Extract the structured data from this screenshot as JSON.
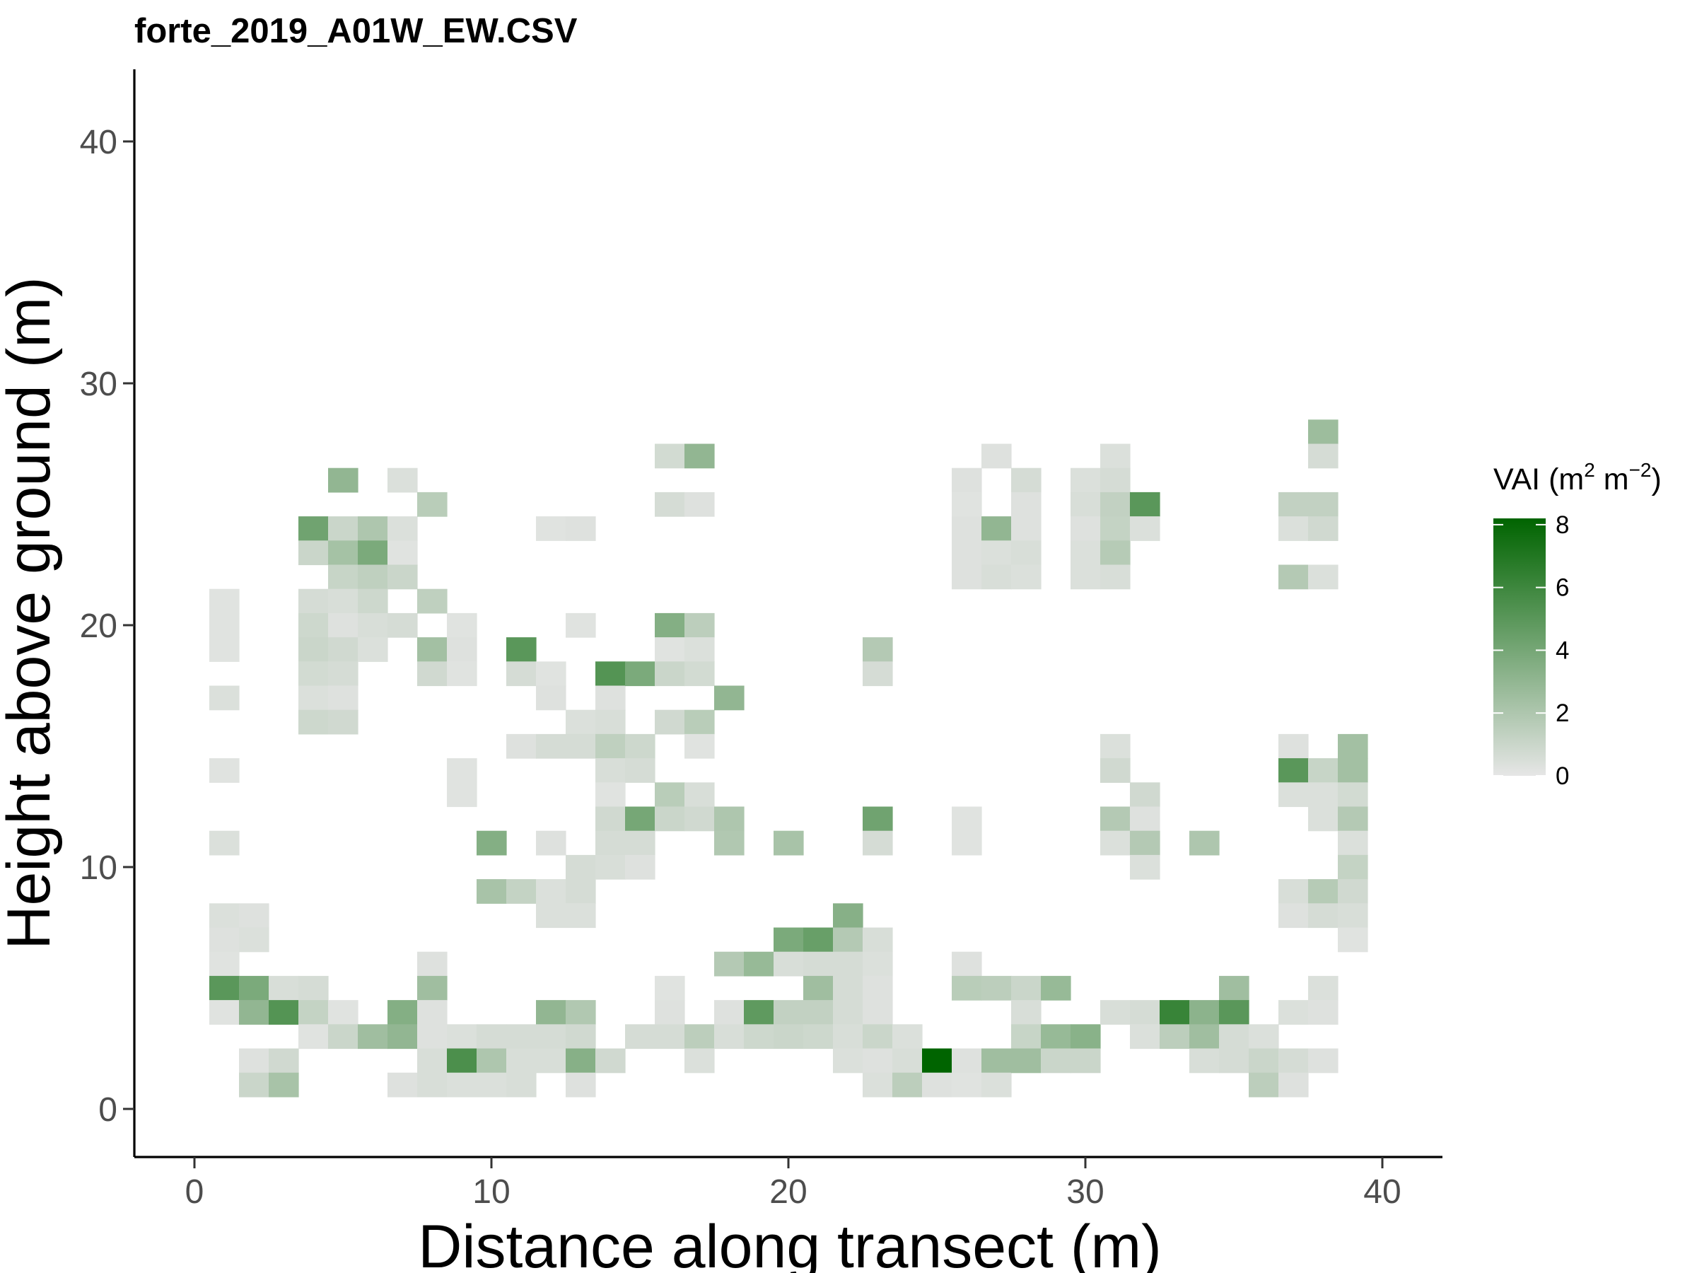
{
  "chart_data": {
    "type": "heatmap",
    "title": "forte_2019_A01W_EW.CSV",
    "xlabel": "Distance along transect (m)",
    "ylabel": "Height above ground (m)",
    "xlim": [
      -2,
      42
    ],
    "ylim": [
      -2,
      43
    ],
    "x_ticks": [
      0,
      10,
      20,
      30,
      40
    ],
    "y_ticks": [
      0,
      10,
      20,
      30,
      40
    ],
    "grid": false,
    "legend": {
      "title_text": "VAI (m",
      "title_sup1": "2",
      "title_mid": " m",
      "title_sup2": "−2",
      "title_end": ")",
      "min": 0,
      "max": 8.2,
      "ticks": [
        0,
        2,
        4,
        6,
        8
      ],
      "color_low": "#e6e6e6",
      "color_high": "#006400",
      "placement": "right"
    },
    "cells": [
      [
        1,
        20,
        0.2
      ],
      [
        1,
        21,
        0.2
      ],
      [
        1,
        19,
        0.2
      ],
      [
        1,
        17,
        0.4
      ],
      [
        1,
        14,
        0.2
      ],
      [
        1,
        11,
        0.4
      ],
      [
        1,
        8,
        0.4
      ],
      [
        1,
        7,
        0.3
      ],
      [
        1,
        6,
        0.2
      ],
      [
        1,
        5,
        5
      ],
      [
        1,
        4,
        0.2
      ],
      [
        2,
        8,
        0.3
      ],
      [
        2,
        7,
        0.4
      ],
      [
        2,
        5,
        3.8
      ],
      [
        2,
        4,
        3
      ],
      [
        2,
        2,
        0.3
      ],
      [
        2,
        1,
        1
      ],
      [
        3,
        5,
        0.5
      ],
      [
        3,
        4,
        5.2
      ],
      [
        3,
        2,
        0.8
      ],
      [
        3,
        1,
        2.2
      ],
      [
        4,
        24,
        4.2
      ],
      [
        4,
        23,
        1
      ],
      [
        4,
        21,
        0.6
      ],
      [
        4,
        20,
        0.9
      ],
      [
        4,
        19,
        1
      ],
      [
        4,
        18,
        0.7
      ],
      [
        4,
        17,
        0.4
      ],
      [
        4,
        16,
        0.9
      ],
      [
        4,
        5,
        0.6
      ],
      [
        4,
        4,
        1.2
      ],
      [
        4,
        3,
        0.2
      ],
      [
        5,
        26,
        3
      ],
      [
        5,
        24,
        1
      ],
      [
        5,
        23,
        2.3
      ],
      [
        5,
        22,
        1.1
      ],
      [
        5,
        21,
        0.5
      ],
      [
        5,
        20,
        0.3
      ],
      [
        5,
        19,
        0.8
      ],
      [
        5,
        18,
        0.6
      ],
      [
        5,
        17,
        0.3
      ],
      [
        5,
        16,
        0.8
      ],
      [
        5,
        4,
        0.2
      ],
      [
        5,
        3,
        1
      ],
      [
        6,
        24,
        2
      ],
      [
        6,
        23,
        3.8
      ],
      [
        6,
        22,
        1.4
      ],
      [
        6,
        21,
        0.9
      ],
      [
        6,
        20,
        0.5
      ],
      [
        6,
        19,
        0.4
      ],
      [
        6,
        3,
        2.5
      ],
      [
        7,
        26,
        0.4
      ],
      [
        7,
        24,
        0.4
      ],
      [
        7,
        23,
        0.2
      ],
      [
        7,
        22,
        1
      ],
      [
        7,
        20,
        0.6
      ],
      [
        7,
        4,
        3.5
      ],
      [
        7,
        3,
        3
      ],
      [
        7,
        1,
        0.3
      ],
      [
        8,
        25,
        1.6
      ],
      [
        8,
        21,
        1.4
      ],
      [
        8,
        19,
        2.4
      ],
      [
        8,
        18,
        0.8
      ],
      [
        8,
        6,
        0.3
      ],
      [
        8,
        5,
        2.5
      ],
      [
        8,
        4,
        0.3
      ],
      [
        8,
        3,
        0.3
      ],
      [
        8,
        2,
        0.5
      ],
      [
        8,
        1,
        0.5
      ],
      [
        9,
        20,
        0.2
      ],
      [
        9,
        19,
        0.3
      ],
      [
        9,
        18,
        0.2
      ],
      [
        9,
        14,
        0.2
      ],
      [
        9,
        13,
        0.2
      ],
      [
        9,
        3,
        0.4
      ],
      [
        9,
        2,
        5.5
      ],
      [
        9,
        1,
        0.4
      ],
      [
        10,
        11,
        3.5
      ],
      [
        10,
        9,
        2.2
      ],
      [
        10,
        3,
        0.6
      ],
      [
        10,
        2,
        2
      ],
      [
        10,
        1,
        0.4
      ],
      [
        11,
        19,
        5
      ],
      [
        11,
        18,
        0.6
      ],
      [
        11,
        15,
        0.3
      ],
      [
        11,
        9,
        1.2
      ],
      [
        11,
        3,
        0.6
      ],
      [
        11,
        2,
        0.5
      ],
      [
        11,
        1,
        0.5
      ],
      [
        12,
        24,
        0.2
      ],
      [
        12,
        18,
        0.2
      ],
      [
        12,
        17,
        0.3
      ],
      [
        12,
        15,
        0.6
      ],
      [
        12,
        11,
        0.3
      ],
      [
        12,
        9,
        0.4
      ],
      [
        12,
        8,
        0.4
      ],
      [
        12,
        4,
        3
      ],
      [
        12,
        3,
        0.6
      ],
      [
        12,
        2,
        0.5
      ],
      [
        13,
        24,
        0.3
      ],
      [
        13,
        20,
        0.2
      ],
      [
        13,
        16,
        0.4
      ],
      [
        13,
        15,
        0.6
      ],
      [
        13,
        10,
        0.6
      ],
      [
        13,
        9,
        0.6
      ],
      [
        13,
        8,
        0.4
      ],
      [
        13,
        4,
        1.9
      ],
      [
        13,
        3,
        0.8
      ],
      [
        13,
        2,
        3.4
      ],
      [
        13,
        1,
        0.3
      ],
      [
        14,
        18,
        5.2
      ],
      [
        14,
        17,
        0.3
      ],
      [
        14,
        16,
        0.5
      ],
      [
        14,
        15,
        1.4
      ],
      [
        14,
        14,
        0.5
      ],
      [
        14,
        13,
        0.2
      ],
      [
        14,
        12,
        0.8
      ],
      [
        14,
        11,
        0.6
      ],
      [
        14,
        10,
        0.5
      ],
      [
        14,
        2,
        0.8
      ],
      [
        15,
        18,
        3.8
      ],
      [
        15,
        15,
        0.9
      ],
      [
        15,
        14,
        0.6
      ],
      [
        15,
        12,
        4
      ],
      [
        15,
        11,
        0.6
      ],
      [
        15,
        10,
        0.3
      ],
      [
        15,
        3,
        0.6
      ],
      [
        16,
        27,
        0.7
      ],
      [
        16,
        25,
        0.6
      ],
      [
        16,
        20,
        3.5
      ],
      [
        16,
        19,
        0.2
      ],
      [
        16,
        18,
        1
      ],
      [
        16,
        16,
        0.8
      ],
      [
        16,
        13,
        1.6
      ],
      [
        16,
        12,
        1
      ],
      [
        16,
        5,
        0.2
      ],
      [
        16,
        4,
        0.3
      ],
      [
        16,
        3,
        0.6
      ],
      [
        17,
        27,
        3
      ],
      [
        17,
        25,
        0.3
      ],
      [
        17,
        20,
        1.5
      ],
      [
        17,
        19,
        0.4
      ],
      [
        17,
        18,
        0.7
      ],
      [
        17,
        16,
        1.6
      ],
      [
        17,
        15,
        0.2
      ],
      [
        17,
        13,
        0.5
      ],
      [
        17,
        12,
        0.8
      ],
      [
        17,
        3,
        1.5
      ],
      [
        17,
        2,
        0.4
      ],
      [
        18,
        17,
        3
      ],
      [
        18,
        12,
        2
      ],
      [
        18,
        11,
        1.9
      ],
      [
        18,
        6,
        1.8
      ],
      [
        18,
        4,
        0.3
      ],
      [
        18,
        3,
        0.5
      ],
      [
        19,
        6,
        2.8
      ],
      [
        19,
        4,
        4.8
      ],
      [
        19,
        3,
        0.9
      ],
      [
        20,
        11,
        2.2
      ],
      [
        20,
        7,
        3.8
      ],
      [
        20,
        6,
        0.5
      ],
      [
        20,
        4,
        1.3
      ],
      [
        20,
        3,
        1
      ],
      [
        21,
        7,
        4.5
      ],
      [
        21,
        6,
        0.6
      ],
      [
        21,
        5,
        2.5
      ],
      [
        21,
        4,
        1.3
      ],
      [
        21,
        3,
        0.9
      ],
      [
        22,
        8,
        3.4
      ],
      [
        22,
        7,
        1.8
      ],
      [
        22,
        6,
        0.6
      ],
      [
        22,
        5,
        0.6
      ],
      [
        22,
        4,
        0.6
      ],
      [
        22,
        3,
        0.5
      ],
      [
        22,
        2,
        0.4
      ],
      [
        23,
        19,
        1.8
      ],
      [
        23,
        18,
        0.6
      ],
      [
        23,
        12,
        4.2
      ],
      [
        23,
        11,
        0.6
      ],
      [
        23,
        7,
        0.5
      ],
      [
        23,
        6,
        0.4
      ],
      [
        23,
        5,
        0.3
      ],
      [
        23,
        4,
        0.3
      ],
      [
        23,
        3,
        1
      ],
      [
        23,
        2,
        0.3
      ],
      [
        23,
        1,
        0.4
      ],
      [
        24,
        3,
        0.4
      ],
      [
        24,
        2,
        0.5
      ],
      [
        24,
        1,
        1.5
      ],
      [
        25,
        2,
        8.2
      ],
      [
        25,
        1,
        0.3
      ],
      [
        26,
        26,
        0.3
      ],
      [
        26,
        25,
        0.2
      ],
      [
        26,
        24,
        0.3
      ],
      [
        26,
        23,
        0.3
      ],
      [
        26,
        22,
        0.3
      ],
      [
        26,
        12,
        0.2
      ],
      [
        26,
        11,
        0.2
      ],
      [
        26,
        6,
        0.3
      ],
      [
        26,
        5,
        1.6
      ],
      [
        26,
        2,
        0.3
      ],
      [
        26,
        1,
        0.2
      ],
      [
        27,
        27,
        0.3
      ],
      [
        27,
        24,
        3
      ],
      [
        27,
        23,
        0.4
      ],
      [
        27,
        22,
        0.5
      ],
      [
        27,
        5,
        1.5
      ],
      [
        27,
        2,
        2.5
      ],
      [
        27,
        1,
        0.4
      ],
      [
        28,
        26,
        0.6
      ],
      [
        28,
        25,
        0.3
      ],
      [
        28,
        24,
        0.3
      ],
      [
        28,
        23,
        0.5
      ],
      [
        28,
        22,
        0.4
      ],
      [
        28,
        5,
        1
      ],
      [
        28,
        4,
        0.5
      ],
      [
        28,
        3,
        1.1
      ],
      [
        28,
        2,
        2.5
      ],
      [
        29,
        5,
        2.8
      ],
      [
        29,
        3,
        2.8
      ],
      [
        29,
        2,
        1
      ],
      [
        30,
        26,
        0.4
      ],
      [
        30,
        25,
        0.5
      ],
      [
        30,
        24,
        0.3
      ],
      [
        30,
        23,
        0.4
      ],
      [
        30,
        22,
        0.4
      ],
      [
        30,
        3,
        3.3
      ],
      [
        30,
        2,
        1
      ],
      [
        31,
        27,
        0.4
      ],
      [
        31,
        26,
        0.6
      ],
      [
        31,
        25,
        1.3
      ],
      [
        31,
        24,
        1.2
      ],
      [
        31,
        23,
        1.7
      ],
      [
        31,
        22,
        0.5
      ],
      [
        31,
        15,
        0.4
      ],
      [
        31,
        14,
        0.8
      ],
      [
        31,
        12,
        1.8
      ],
      [
        31,
        11,
        0.4
      ],
      [
        31,
        4,
        0.5
      ],
      [
        32,
        25,
        5
      ],
      [
        32,
        24,
        0.4
      ],
      [
        32,
        13,
        0.8
      ],
      [
        32,
        12,
        0.3
      ],
      [
        32,
        11,
        1.8
      ],
      [
        32,
        10,
        0.4
      ],
      [
        32,
        4,
        0.6
      ],
      [
        32,
        3,
        0.4
      ],
      [
        33,
        4,
        6.2
      ],
      [
        33,
        3,
        1.5
      ],
      [
        34,
        11,
        2
      ],
      [
        34,
        4,
        3.2
      ],
      [
        34,
        3,
        2.5
      ],
      [
        34,
        2,
        0.5
      ],
      [
        35,
        5,
        2.5
      ],
      [
        35,
        4,
        5
      ],
      [
        35,
        3,
        0.6
      ],
      [
        35,
        2,
        0.6
      ],
      [
        36,
        3,
        0.4
      ],
      [
        36,
        2,
        1
      ],
      [
        36,
        1,
        1.5
      ],
      [
        37,
        25,
        1.3
      ],
      [
        37,
        24,
        0.4
      ],
      [
        37,
        22,
        1.8
      ],
      [
        37,
        15,
        0.3
      ],
      [
        37,
        14,
        5
      ],
      [
        37,
        13,
        0.4
      ],
      [
        37,
        9,
        0.5
      ],
      [
        37,
        8,
        0.3
      ],
      [
        37,
        4,
        0.4
      ],
      [
        37,
        2,
        0.6
      ],
      [
        37,
        1,
        0.3
      ],
      [
        38,
        28,
        2.6
      ],
      [
        38,
        27,
        0.6
      ],
      [
        38,
        25,
        1.3
      ],
      [
        38,
        24,
        0.8
      ],
      [
        38,
        22,
        0.4
      ],
      [
        38,
        14,
        1.1
      ],
      [
        38,
        13,
        0.4
      ],
      [
        38,
        12,
        0.4
      ],
      [
        38,
        9,
        1.7
      ],
      [
        38,
        8,
        0.6
      ],
      [
        38,
        5,
        0.4
      ],
      [
        38,
        4,
        0.3
      ],
      [
        38,
        2,
        0.3
      ],
      [
        39,
        15,
        2.4
      ],
      [
        39,
        14,
        2.4
      ],
      [
        39,
        13,
        0.7
      ],
      [
        39,
        12,
        1.8
      ],
      [
        39,
        11,
        0.4
      ],
      [
        39,
        10,
        1.2
      ],
      [
        39,
        9,
        0.8
      ],
      [
        39,
        8,
        0.5
      ],
      [
        39,
        7,
        0.2
      ]
    ]
  }
}
